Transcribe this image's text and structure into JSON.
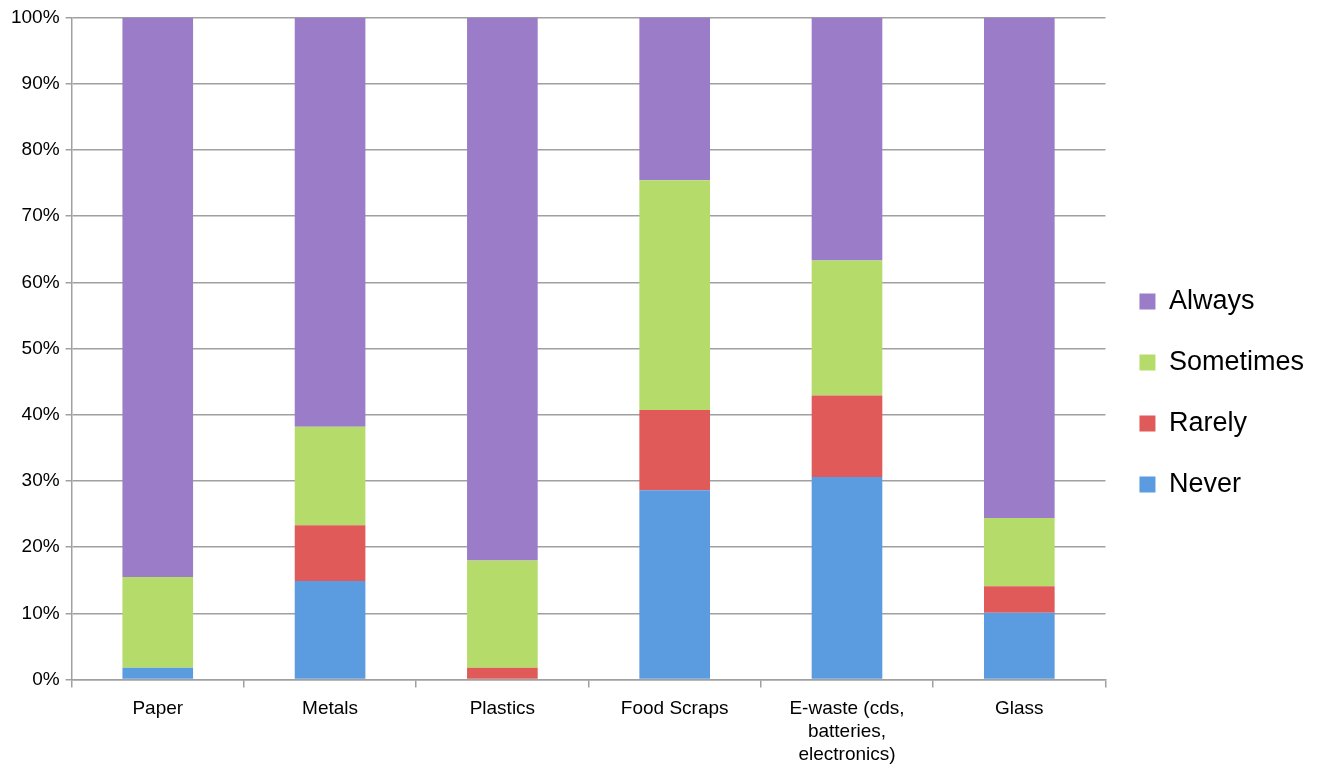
{
  "chart_data": {
    "type": "bar",
    "stacked": true,
    "categories": [
      "Paper",
      "Metals",
      "Plastics",
      "Food Scraps",
      "E-waste (cds, batteries, electronics)",
      "Glass"
    ],
    "series": [
      {
        "name": "Never",
        "color": "#5b9be0",
        "values": [
          1.8,
          14.9,
          0,
          28.6,
          30.6,
          10.1
        ]
      },
      {
        "name": "Rarely",
        "color": "#e05a5a",
        "values": [
          0,
          8.4,
          1.8,
          12.1,
          12.3,
          4.0
        ]
      },
      {
        "name": "Sometimes",
        "color": "#b5dc6a",
        "values": [
          13.7,
          14.9,
          16.2,
          34.7,
          20.4,
          10.3
        ]
      },
      {
        "name": "Always",
        "color": "#9a7cc8",
        "values": [
          84.5,
          61.8,
          82.0,
          24.6,
          36.7,
          75.6
        ]
      }
    ],
    "ylim": [
      0,
      100
    ],
    "yticks": [
      {
        "value": 0,
        "label": "0%"
      },
      {
        "value": 10,
        "label": "10%"
      },
      {
        "value": 20,
        "label": "20%"
      },
      {
        "value": 30,
        "label": "30%"
      },
      {
        "value": 40,
        "label": "40%"
      },
      {
        "value": 50,
        "label": "50%"
      },
      {
        "value": 60,
        "label": "60%"
      },
      {
        "value": 70,
        "label": "70%"
      },
      {
        "value": 80,
        "label": "80%"
      },
      {
        "value": 90,
        "label": "90%"
      },
      {
        "value": 100,
        "label": "100%"
      }
    ],
    "grid": "y",
    "legend": "right"
  }
}
